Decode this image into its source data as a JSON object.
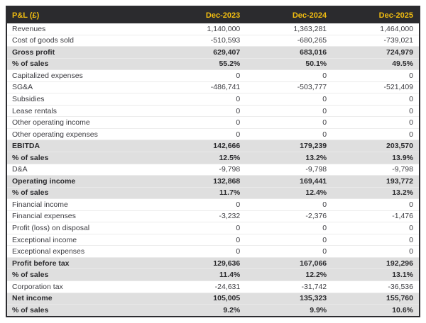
{
  "chart_data": {
    "type": "table",
    "title": "P&L (£)",
    "columns": [
      "Dec-2023",
      "Dec-2024",
      "Dec-2025"
    ],
    "rows": [
      {
        "label": "Revenues",
        "values": [
          "1,140,000",
          "1,363,281",
          "1,464,000"
        ],
        "emphasis": false
      },
      {
        "label": "Cost of goods sold",
        "values": [
          "-510,593",
          "-680,265",
          "-739,021"
        ],
        "emphasis": false
      },
      {
        "label": "Gross profit",
        "values": [
          "629,407",
          "683,016",
          "724,979"
        ],
        "emphasis": true
      },
      {
        "label": "% of sales",
        "values": [
          "55.2%",
          "50.1%",
          "49.5%"
        ],
        "emphasis": true
      },
      {
        "label": "Capitalized expenses",
        "values": [
          "0",
          "0",
          "0"
        ],
        "emphasis": false
      },
      {
        "label": "SG&A",
        "values": [
          "-486,741",
          "-503,777",
          "-521,409"
        ],
        "emphasis": false
      },
      {
        "label": "Subsidies",
        "values": [
          "0",
          "0",
          "0"
        ],
        "emphasis": false
      },
      {
        "label": "Lease rentals",
        "values": [
          "0",
          "0",
          "0"
        ],
        "emphasis": false
      },
      {
        "label": "Other operating income",
        "values": [
          "0",
          "0",
          "0"
        ],
        "emphasis": false
      },
      {
        "label": "Other operating expenses",
        "values": [
          "0",
          "0",
          "0"
        ],
        "emphasis": false
      },
      {
        "label": "EBITDA",
        "values": [
          "142,666",
          "179,239",
          "203,570"
        ],
        "emphasis": true
      },
      {
        "label": "% of sales",
        "values": [
          "12.5%",
          "13.2%",
          "13.9%"
        ],
        "emphasis": true
      },
      {
        "label": "D&A",
        "values": [
          "-9,798",
          "-9,798",
          "-9,798"
        ],
        "emphasis": false
      },
      {
        "label": "Operating income",
        "values": [
          "132,868",
          "169,441",
          "193,772"
        ],
        "emphasis": true
      },
      {
        "label": "% of sales",
        "values": [
          "11.7%",
          "12.4%",
          "13.2%"
        ],
        "emphasis": true
      },
      {
        "label": "Financial income",
        "values": [
          "0",
          "0",
          "0"
        ],
        "emphasis": false
      },
      {
        "label": "Financial expenses",
        "values": [
          "-3,232",
          "-2,376",
          "-1,476"
        ],
        "emphasis": false
      },
      {
        "label": "Profit (loss) on disposal",
        "values": [
          "0",
          "0",
          "0"
        ],
        "emphasis": false
      },
      {
        "label": "Exceptional income",
        "values": [
          "0",
          "0",
          "0"
        ],
        "emphasis": false
      },
      {
        "label": "Exceptional expenses",
        "values": [
          "0",
          "0",
          "0"
        ],
        "emphasis": false
      },
      {
        "label": "Profit before tax",
        "values": [
          "129,636",
          "167,066",
          "192,296"
        ],
        "emphasis": true
      },
      {
        "label": "% of sales",
        "values": [
          "11.4%",
          "12.2%",
          "13.1%"
        ],
        "emphasis": true
      },
      {
        "label": "Corporation tax",
        "values": [
          "-24,631",
          "-31,742",
          "-36,536"
        ],
        "emphasis": false
      },
      {
        "label": "Net income",
        "values": [
          "105,005",
          "135,323",
          "155,760"
        ],
        "emphasis": true
      },
      {
        "label": "% of sales",
        "values": [
          "9.2%",
          "9.9%",
          "10.6%"
        ],
        "emphasis": true
      }
    ],
    "layout": {
      "legend": "none",
      "grid": "row-separators",
      "value_alignment": "right"
    }
  },
  "colors": {
    "header_bg": "#2b2b2e",
    "header_text": "#f2bd10",
    "emphasis_band_bg": "#dfdfdf",
    "body_text": "#3c3c41",
    "outer_border": "#2c2c30",
    "row_separator": "#ececec"
  }
}
